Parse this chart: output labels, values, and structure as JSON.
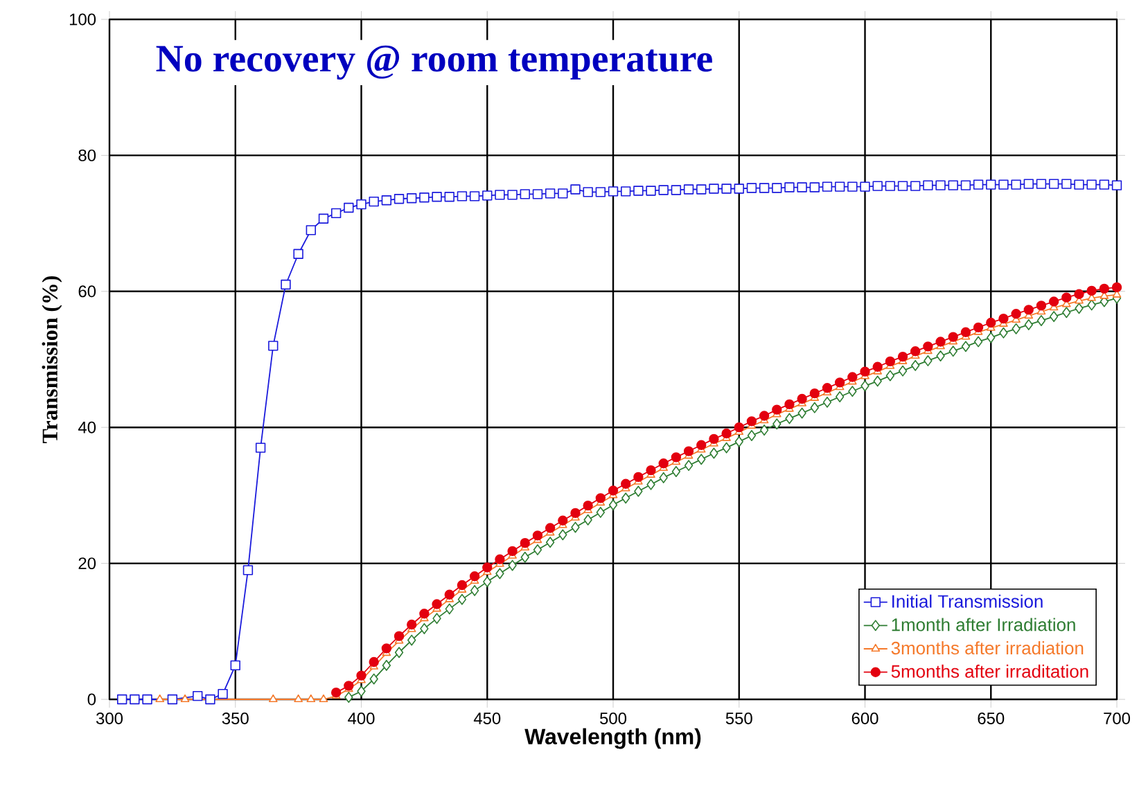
{
  "chart_data": {
    "type": "line",
    "title": "No recovery @ room temperature",
    "xlabel": "Wavelength (nm)",
    "ylabel": "Transmission (%)",
    "x": [
      305,
      310,
      315,
      320,
      325,
      330,
      335,
      340,
      345,
      350,
      355,
      360,
      365,
      370,
      375,
      380,
      385,
      390,
      395,
      400,
      405,
      410,
      415,
      420,
      425,
      430,
      435,
      440,
      445,
      450,
      455,
      460,
      465,
      470,
      475,
      480,
      485,
      490,
      495,
      500,
      505,
      510,
      515,
      520,
      525,
      530,
      535,
      540,
      545,
      550,
      555,
      560,
      565,
      570,
      575,
      580,
      585,
      590,
      595,
      600,
      605,
      610,
      615,
      620,
      625,
      630,
      635,
      640,
      645,
      650,
      655,
      660,
      665,
      670,
      675,
      680,
      685,
      690,
      695,
      700
    ],
    "series": [
      {
        "name": "Initial Transmission",
        "color": "#1a1adc",
        "marker": "square",
        "values": [
          0,
          0,
          0,
          null,
          0,
          null,
          0.5,
          0,
          0.8,
          5,
          19,
          37,
          52,
          61,
          65.5,
          69,
          70.7,
          71.5,
          72.3,
          72.8,
          73.2,
          73.4,
          73.6,
          73.7,
          73.8,
          73.9,
          73.9,
          74.0,
          74.0,
          74.1,
          74.2,
          74.2,
          74.3,
          74.3,
          74.4,
          74.4,
          75.0,
          74.6,
          74.6,
          74.7,
          74.7,
          74.8,
          74.8,
          74.9,
          74.9,
          75.0,
          75.0,
          75.1,
          75.1,
          75.1,
          75.2,
          75.2,
          75.2,
          75.3,
          75.3,
          75.3,
          75.4,
          75.4,
          75.4,
          75.4,
          75.5,
          75.5,
          75.5,
          75.5,
          75.6,
          75.6,
          75.6,
          75.6,
          75.7,
          75.7,
          75.7,
          75.7,
          75.8,
          75.8,
          75.8,
          75.8,
          75.7,
          75.7,
          75.7,
          75.6
        ]
      },
      {
        "name": "1month after Irradiation",
        "color": "#2e7d32",
        "marker": "diamond",
        "values": [
          null,
          null,
          null,
          null,
          null,
          null,
          null,
          null,
          null,
          null,
          null,
          null,
          null,
          null,
          null,
          null,
          null,
          null,
          0.3,
          1.2,
          3.0,
          5.0,
          6.9,
          8.7,
          10.4,
          11.9,
          13.3,
          14.7,
          16.0,
          17.3,
          18.5,
          19.7,
          20.9,
          22.0,
          23.1,
          24.2,
          25.3,
          26.4,
          27.5,
          28.6,
          29.6,
          30.6,
          31.6,
          32.6,
          33.5,
          34.4,
          35.3,
          36.2,
          37.0,
          37.9,
          38.8,
          39.6,
          40.5,
          41.3,
          42.1,
          42.9,
          43.7,
          44.5,
          45.3,
          46.1,
          46.8,
          47.6,
          48.3,
          49.1,
          49.8,
          50.5,
          51.2,
          51.9,
          52.6,
          53.2,
          53.9,
          54.5,
          55.1,
          55.7,
          56.3,
          56.9,
          57.5,
          58.0,
          58.5,
          59.0
        ]
      },
      {
        "name": "3months after irradiation",
        "color": "#f5792a",
        "marker": "triangle",
        "values": [
          null,
          null,
          null,
          0,
          null,
          0,
          null,
          null,
          null,
          null,
          null,
          null,
          0,
          null,
          0,
          0,
          0,
          0.5,
          1.5,
          2.8,
          4.8,
          6.8,
          8.6,
          10.3,
          11.9,
          13.3,
          14.7,
          16.1,
          17.4,
          18.7,
          19.9,
          21.1,
          22.3,
          23.4,
          24.5,
          25.6,
          26.7,
          27.8,
          28.9,
          30.0,
          31.0,
          32.0,
          33.0,
          34.0,
          34.9,
          35.8,
          36.7,
          37.6,
          38.4,
          39.3,
          40.2,
          41.0,
          41.9,
          42.7,
          43.5,
          44.3,
          45.1,
          45.9,
          46.7,
          47.5,
          48.2,
          49.0,
          49.7,
          50.5,
          51.2,
          51.9,
          52.6,
          53.3,
          54.0,
          54.6,
          55.2,
          55.8,
          56.4,
          57.0,
          57.6,
          58.1,
          58.6,
          59.0,
          59.3,
          59.5
        ]
      },
      {
        "name": "5months after irraditation",
        "color": "#e3000f",
        "marker": "circle",
        "values": [
          null,
          null,
          null,
          null,
          null,
          null,
          null,
          null,
          null,
          null,
          null,
          null,
          null,
          null,
          null,
          null,
          null,
          1.0,
          2.0,
          3.5,
          5.5,
          7.5,
          9.3,
          11.0,
          12.6,
          14.0,
          15.4,
          16.8,
          18.1,
          19.4,
          20.6,
          21.8,
          23.0,
          24.1,
          25.2,
          26.3,
          27.4,
          28.5,
          29.6,
          30.7,
          31.7,
          32.7,
          33.7,
          34.7,
          35.6,
          36.5,
          37.4,
          38.3,
          39.1,
          40.0,
          40.9,
          41.7,
          42.6,
          43.4,
          44.2,
          45.0,
          45.8,
          46.6,
          47.4,
          48.2,
          48.9,
          49.7,
          50.4,
          51.2,
          51.9,
          52.6,
          53.3,
          54.0,
          54.7,
          55.4,
          56.0,
          56.7,
          57.3,
          57.9,
          58.5,
          59.1,
          59.6,
          60.1,
          60.4,
          60.6
        ]
      }
    ],
    "xlim": [
      300,
      700
    ],
    "ylim": [
      0,
      100
    ],
    "xticks": [
      300,
      350,
      400,
      450,
      500,
      550,
      600,
      650,
      700
    ],
    "yticks": [
      0,
      20,
      40,
      60,
      80,
      100
    ],
    "grid": true,
    "legend": "bottom right"
  }
}
